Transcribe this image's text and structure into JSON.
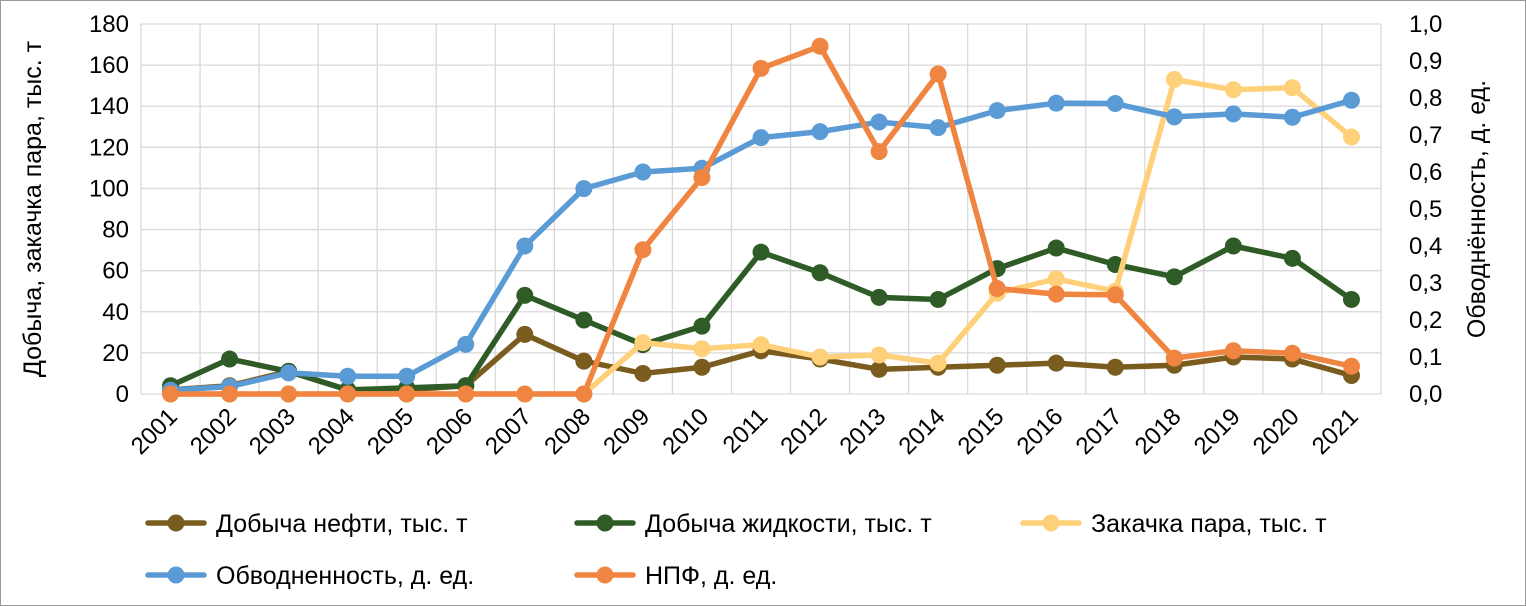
{
  "chart_data": {
    "type": "line",
    "title": "",
    "x": [
      "2001",
      "2002",
      "2003",
      "2004",
      "2005",
      "2006",
      "2007",
      "2008",
      "2009",
      "2010",
      "2011",
      "2012",
      "2013",
      "2014",
      "2015",
      "2016",
      "2017",
      "2018",
      "2019",
      "2020",
      "2021"
    ],
    "ylabel_left": "Добыча, закачка пара, тыс. т",
    "ylabel_right": "Обводнённость, д. ед.",
    "ylim_left": [
      0,
      180
    ],
    "ylim_right": [
      0,
      1.0
    ],
    "yticks_left": [
      "0",
      "20",
      "40",
      "60",
      "80",
      "100",
      "120",
      "140",
      "160",
      "180"
    ],
    "yticks_right": [
      "0,0",
      "0,1",
      "0,2",
      "0,3",
      "0,4",
      "0,5",
      "0,6",
      "0,7",
      "0,8",
      "0,9",
      "1,0"
    ],
    "grid": true,
    "legend_position": "bottom",
    "series": [
      {
        "name": "Добыча нефти, тыс. т",
        "axis": "left",
        "color": "#7a5c1e",
        "values": [
          2,
          4,
          11,
          2,
          2,
          4,
          29,
          16,
          10,
          13,
          21,
          17,
          12,
          13,
          14,
          15,
          13,
          14,
          18,
          17,
          9
        ]
      },
      {
        "name": "Добыча жидкости, тыс. т",
        "axis": "left",
        "color": "#2e5b26",
        "values": [
          4,
          17,
          11,
          2,
          3,
          4,
          48,
          36,
          24,
          33,
          69,
          59,
          47,
          46,
          61,
          71,
          63,
          57,
          72,
          66,
          46
        ]
      },
      {
        "name": "Закачка пара, тыс. т",
        "axis": "left",
        "color": "#ffd07a",
        "values": [
          0,
          0,
          0,
          0,
          0,
          0,
          0,
          0,
          25,
          22,
          24,
          18,
          19,
          15,
          49,
          56,
          50,
          153,
          148,
          149,
          125
        ]
      },
      {
        "name": "Обводненность, д. ед.",
        "axis": "right",
        "color": "#5b9bd5",
        "values": [
          0.01,
          0.02,
          0.057,
          0.048,
          0.048,
          0.134,
          0.4,
          0.555,
          0.6,
          0.61,
          0.693,
          0.709,
          0.735,
          0.72,
          0.766,
          0.786,
          0.785,
          0.749,
          0.757,
          0.748,
          0.794
        ]
      },
      {
        "name": "НПФ, д. ед.",
        "axis": "right",
        "color": "#f08441",
        "values": [
          0,
          0,
          0,
          0,
          0,
          0,
          0,
          0,
          0.39,
          0.585,
          0.88,
          0.94,
          0.655,
          0.865,
          0.285,
          0.27,
          0.268,
          0.097,
          0.117,
          0.11,
          0.075
        ]
      }
    ]
  }
}
